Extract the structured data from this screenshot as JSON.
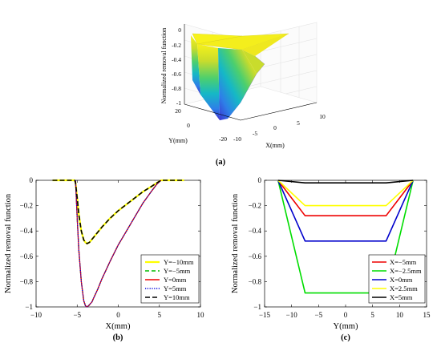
{
  "panel_labels": {
    "a": "(a)",
    "b": "(b)",
    "c": "(c)"
  },
  "chart_data": [
    {
      "id": "a",
      "type": "surface",
      "zlabel": "Normalized removal function",
      "xlabel": "X(mm)",
      "ylabel": "Y(mm)",
      "x_ticks": [
        "-10",
        "-5",
        "0",
        "5",
        "10"
      ],
      "y_ticks": [
        "-20",
        "0",
        "20"
      ],
      "z_ticks": [
        "0",
        "-0.2",
        "-0.4",
        "-0.6",
        "-0.8",
        "-1"
      ],
      "xlim": [
        -10,
        10
      ],
      "ylim": [
        -20,
        20
      ],
      "zlim": [
        -1,
        0
      ],
      "colormap": [
        "#3c2fd0",
        "#2e7fe8",
        "#15b8c6",
        "#4ccf6e",
        "#c9dc2c",
        "#f7f21a"
      ]
    },
    {
      "id": "b",
      "type": "line",
      "xlabel": "X(mm)",
      "ylabel": "Normalized removal function",
      "xlim": [
        -10,
        10
      ],
      "ylim": [
        -1,
        0
      ],
      "x_ticks": [
        -10,
        -5,
        0,
        5,
        10
      ],
      "y_ticks": [
        0,
        -0.2,
        -0.4,
        -0.6,
        -0.8,
        -1
      ],
      "x_tick_labels": [
        "−10",
        "−5",
        "0",
        "5",
        "10"
      ],
      "y_tick_labels": [
        "0",
        "−0.2",
        "−0.4",
        "−0.6",
        "−0.8",
        "−1"
      ],
      "legend_position": "bottom-right",
      "series": [
        {
          "name": "Y=−10mm",
          "color": "#ffff00",
          "dash": "solid",
          "width": 2.2,
          "x": [
            -8,
            -5.3,
            -5.2,
            -5.0,
            -4.8,
            -4.5,
            -4.2,
            -4.0,
            -3.8,
            -3.5,
            -3.0,
            -2.5,
            -2.0,
            -1.0,
            0.0,
            1.0,
            2.0,
            3.0,
            4.0,
            4.7,
            5.2,
            8
          ],
          "y": [
            0,
            0,
            -0.02,
            -0.14,
            -0.27,
            -0.4,
            -0.47,
            -0.49,
            -0.5,
            -0.49,
            -0.45,
            -0.41,
            -0.37,
            -0.3,
            -0.24,
            -0.19,
            -0.14,
            -0.09,
            -0.05,
            -0.02,
            0,
            0
          ]
        },
        {
          "name": "Y=−5mm",
          "color": "#00bb00",
          "dash": "dashed",
          "width": 1.3,
          "x": [
            -5.2,
            -5.0,
            -4.8,
            -4.5,
            -4.2,
            -4.0,
            -3.8,
            -3.6,
            -3.2,
            -3.0,
            -2.5,
            -2.0,
            -1.0,
            0.0,
            1.0,
            2.0,
            3.0,
            4.0,
            4.7,
            5.2
          ],
          "y": [
            0,
            -0.3,
            -0.55,
            -0.8,
            -0.95,
            -0.99,
            -1.0,
            -0.99,
            -0.96,
            -0.93,
            -0.86,
            -0.78,
            -0.64,
            -0.51,
            -0.4,
            -0.29,
            -0.18,
            -0.09,
            -0.03,
            0
          ]
        },
        {
          "name": "Y=0mm",
          "color": "#ee0000",
          "dash": "solid",
          "width": 1.3,
          "x": [
            -5.2,
            -5.0,
            -4.8,
            -4.5,
            -4.2,
            -4.0,
            -3.8,
            -3.6,
            -3.2,
            -3.0,
            -2.5,
            -2.0,
            -1.0,
            0.0,
            1.0,
            2.0,
            3.0,
            4.0,
            4.7,
            5.2
          ],
          "y": [
            0,
            -0.3,
            -0.55,
            -0.8,
            -0.95,
            -0.99,
            -1.0,
            -0.99,
            -0.96,
            -0.93,
            -0.86,
            -0.78,
            -0.64,
            -0.51,
            -0.4,
            -0.29,
            -0.18,
            -0.09,
            -0.03,
            0
          ]
        },
        {
          "name": "Y=5mm",
          "color": "#0000dd",
          "dash": "dotted",
          "width": 1.3,
          "x": [
            -5.2,
            -5.0,
            -4.8,
            -4.5,
            -4.2,
            -4.0,
            -3.8,
            -3.6,
            -3.2,
            -3.0,
            -2.5,
            -2.0,
            -1.0,
            0.0,
            1.0,
            2.0,
            3.0,
            4.0,
            4.7,
            5.2
          ],
          "y": [
            0,
            -0.3,
            -0.55,
            -0.8,
            -0.95,
            -0.99,
            -1.0,
            -0.99,
            -0.96,
            -0.93,
            -0.86,
            -0.78,
            -0.64,
            -0.51,
            -0.4,
            -0.29,
            -0.18,
            -0.09,
            -0.03,
            0
          ]
        },
        {
          "name": "Y=10mm",
          "color": "#000000",
          "dash": "dashed-bold",
          "width": 1.6,
          "x": [
            -8,
            -5.3,
            -5.2,
            -5.0,
            -4.8,
            -4.5,
            -4.2,
            -4.0,
            -3.8,
            -3.5,
            -3.0,
            -2.5,
            -2.0,
            -1.0,
            0.0,
            1.0,
            2.0,
            3.0,
            4.0,
            4.7,
            5.2,
            8
          ],
          "y": [
            0,
            0,
            -0.02,
            -0.14,
            -0.27,
            -0.4,
            -0.47,
            -0.49,
            -0.5,
            -0.49,
            -0.45,
            -0.41,
            -0.37,
            -0.3,
            -0.24,
            -0.19,
            -0.14,
            -0.09,
            -0.05,
            -0.02,
            0,
            0
          ]
        }
      ]
    },
    {
      "id": "c",
      "type": "line",
      "xlabel": "Y(mm)",
      "ylabel": "Normalized removal function",
      "xlim": [
        -15,
        15
      ],
      "ylim": [
        -1,
        0
      ],
      "x_ticks": [
        -15,
        -10,
        -5,
        0,
        5,
        10,
        15
      ],
      "y_ticks": [
        0,
        -0.2,
        -0.4,
        -0.6,
        -0.8,
        -1
      ],
      "x_tick_labels": [
        "−15",
        "−10",
        "−5",
        "0",
        "5",
        "10",
        "15"
      ],
      "y_tick_labels": [
        "0",
        "−0.2",
        "−0.4",
        "−0.6",
        "−0.8",
        "−1"
      ],
      "legend_position": "bottom-right",
      "series": [
        {
          "name": "X=−5mm",
          "color": "#ee0000",
          "dash": "solid",
          "width": 1.6,
          "x": [
            -12.5,
            -7.5,
            7.5,
            12.5
          ],
          "y": [
            0,
            -0.28,
            -0.28,
            0
          ]
        },
        {
          "name": "X=−2.5mm",
          "color": "#00dd00",
          "dash": "solid",
          "width": 1.6,
          "x": [
            -12.5,
            -7.5,
            7.5,
            12.5
          ],
          "y": [
            0,
            -0.89,
            -0.89,
            0
          ]
        },
        {
          "name": "X=0mm",
          "color": "#0000cc",
          "dash": "solid",
          "width": 1.6,
          "x": [
            -12.5,
            -7.5,
            7.5,
            12.5
          ],
          "y": [
            0,
            -0.48,
            -0.48,
            0
          ]
        },
        {
          "name": "X=2.5mm",
          "color": "#ffff00",
          "dash": "solid",
          "width": 1.6,
          "x": [
            -12.5,
            -7.5,
            7.5,
            12.5
          ],
          "y": [
            0,
            -0.2,
            -0.2,
            0
          ]
        },
        {
          "name": "X=5mm",
          "color": "#000000",
          "dash": "solid",
          "width": 1.6,
          "x": [
            -12.5,
            -7.5,
            7.5,
            12.5
          ],
          "y": [
            0,
            -0.02,
            -0.02,
            0
          ]
        }
      ]
    }
  ]
}
